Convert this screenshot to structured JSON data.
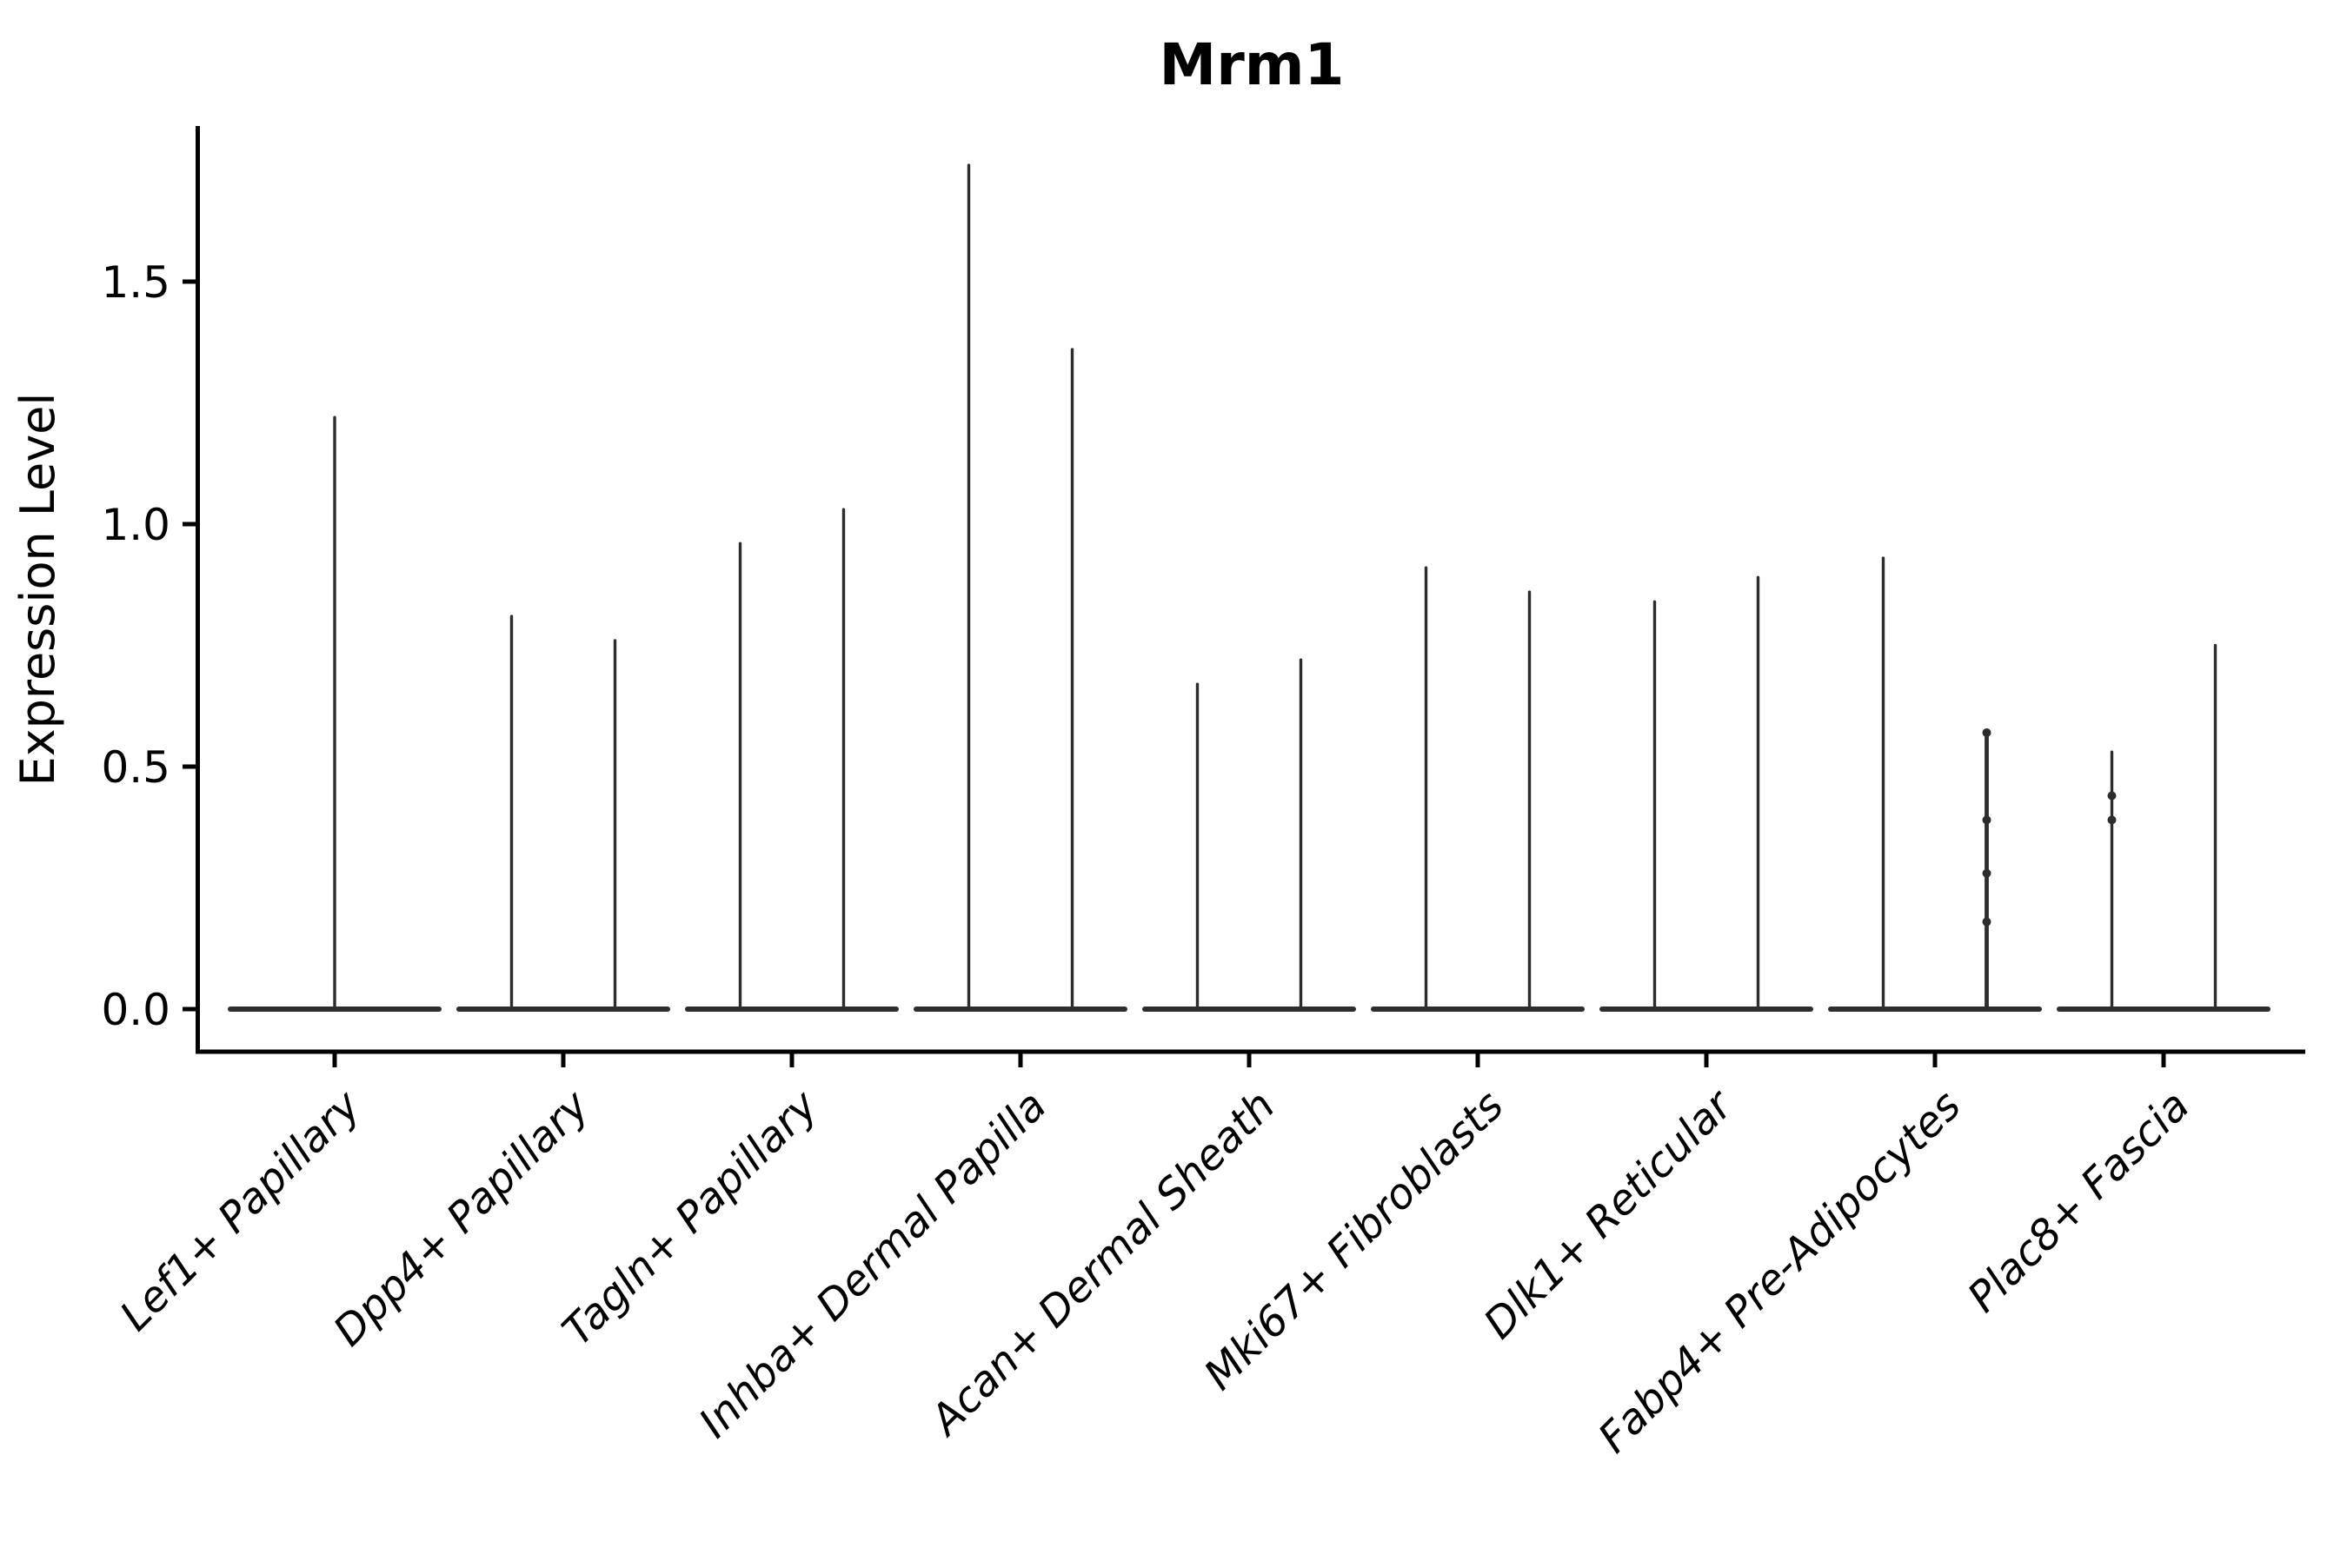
{
  "chart_data": {
    "type": "violin",
    "title": "Mrm1",
    "ylabel": "Expression Level",
    "xlabel": "",
    "background_color": "#ffffff",
    "axis_color": "#000000",
    "violin_stroke_color": "#2d2d2d",
    "legend": "none",
    "grid": "off",
    "ylim": [
      -0.09,
      1.82
    ],
    "ytick_labels": [
      "0.0",
      "0.5",
      "1.0",
      "1.5"
    ],
    "ytick_values": [
      0.0,
      0.5,
      1.0,
      1.5
    ],
    "categories": [
      "Lef1+ Papillary",
      "Dpp4+ Papillary",
      "Tagln+ Papillary",
      "Inhba+ Dermal Papilla",
      "Acan+ Dermal Sheath",
      "Mki67+ Fibroblasts",
      "Dlk1+ Reticular",
      "Fabp4+ Pre-Adipocytes",
      "Plac8+ Fascia"
    ],
    "series": [
      {
        "category": "Lef1+ Papillary",
        "violin_max_values": [
          1.22
        ]
      },
      {
        "category": "Dpp4+ Papillary",
        "violin_max_values": [
          0.81,
          0.76
        ]
      },
      {
        "category": "Tagln+ Papillary",
        "violin_max_values": [
          0.96,
          1.03
        ]
      },
      {
        "category": "Inhba+ Dermal Papilla",
        "violin_max_values": [
          1.74,
          1.36
        ]
      },
      {
        "category": "Acan+ Dermal Sheath",
        "violin_max_values": [
          0.67,
          0.72
        ]
      },
      {
        "category": "Mki67+ Fibroblasts",
        "violin_max_values": [
          0.91,
          0.86
        ]
      },
      {
        "category": "Dlk1+ Reticular",
        "violin_max_values": [
          0.84,
          0.89
        ]
      },
      {
        "category": "Fabp4+ Pre-Adipocytes",
        "violin_max_values": [
          0.93,
          0.57
        ]
      },
      {
        "category": "Plac8+ Fascia",
        "violin_max_values": [
          0.53,
          0.75
        ]
      }
    ],
    "overlay_points": [
      {
        "category": "Fabp4+ Pre-Adipocytes",
        "violin_index": 1,
        "values": [
          0.57,
          0.39,
          0.28,
          0.18
        ]
      },
      {
        "category": "Plac8+ Fascia",
        "violin_index": 0,
        "values": [
          0.44,
          0.39
        ]
      }
    ],
    "description": "Violin plot of Mrm1 expression; each violin is a flat density base at 0 with a thin vertical spike rising to its maximum expression value."
  }
}
